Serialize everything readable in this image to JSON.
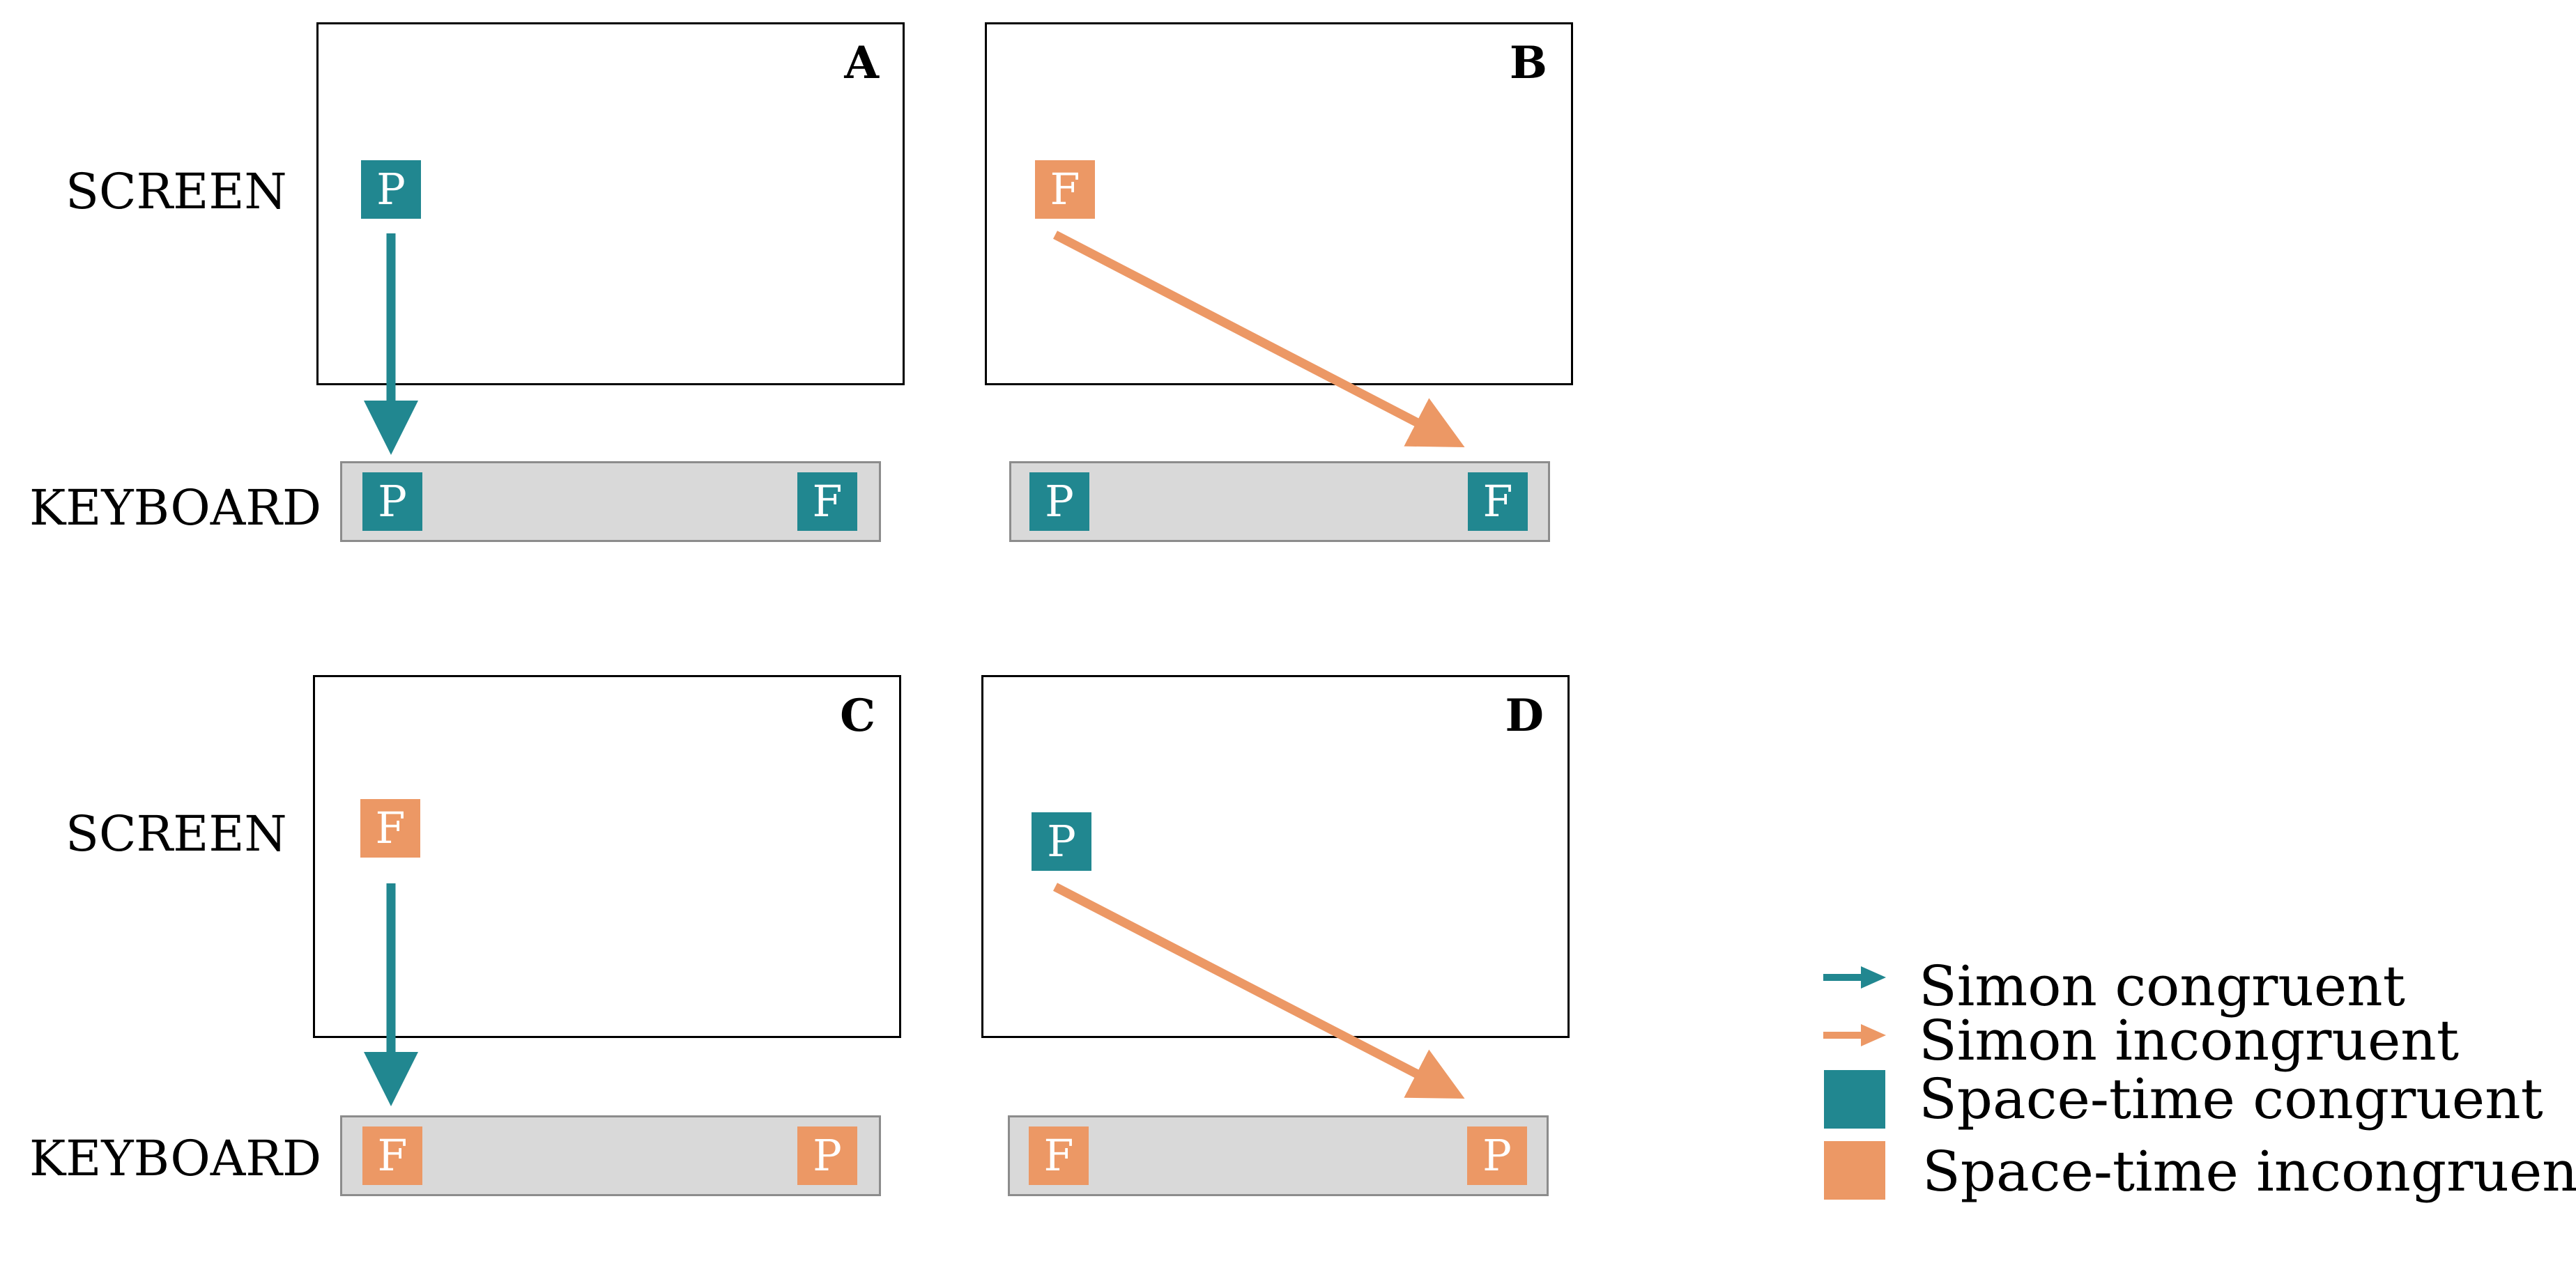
{
  "colors": {
    "congruent": "#218790",
    "incongruent": "#ec9865",
    "keyboard_fill": "#d9d9d9",
    "keyboard_border": "#8c8c8c"
  },
  "row_labels": {
    "screen": "SCREEN",
    "keyboard": "KEYBOARD"
  },
  "panels": [
    {
      "letter": "A",
      "stimulus": {
        "letter": "P",
        "type": "congruent"
      },
      "keys": [
        {
          "letter": "P",
          "type": "congruent"
        },
        {
          "letter": "F",
          "type": "congruent"
        }
      ],
      "arrow": {
        "type": "congruent",
        "direction": "down-to-left-key"
      }
    },
    {
      "letter": "B",
      "stimulus": {
        "letter": "F",
        "type": "incongruent"
      },
      "keys": [
        {
          "letter": "P",
          "type": "congruent"
        },
        {
          "letter": "F",
          "type": "congruent"
        }
      ],
      "arrow": {
        "type": "incongruent",
        "direction": "diagonal-to-right-key"
      }
    },
    {
      "letter": "C",
      "stimulus": {
        "letter": "F",
        "type": "incongruent"
      },
      "keys": [
        {
          "letter": "F",
          "type": "incongruent"
        },
        {
          "letter": "P",
          "type": "incongruent"
        }
      ],
      "arrow": {
        "type": "congruent",
        "direction": "down-to-left-key"
      }
    },
    {
      "letter": "D",
      "stimulus": {
        "letter": "P",
        "type": "congruent"
      },
      "keys": [
        {
          "letter": "F",
          "type": "incongruent"
        },
        {
          "letter": "P",
          "type": "incongruent"
        }
      ],
      "arrow": {
        "type": "incongruent",
        "direction": "diagonal-to-right-key"
      }
    }
  ],
  "legend": [
    {
      "marker": "arrow",
      "type": "congruent",
      "label": "Simon congruent"
    },
    {
      "marker": "arrow",
      "type": "incongruent",
      "label": "Simon incongruent"
    },
    {
      "marker": "square",
      "type": "congruent",
      "label": "Space-time congruent"
    },
    {
      "marker": "square",
      "type": "incongruent",
      "label": "Space-time incongruent"
    }
  ]
}
